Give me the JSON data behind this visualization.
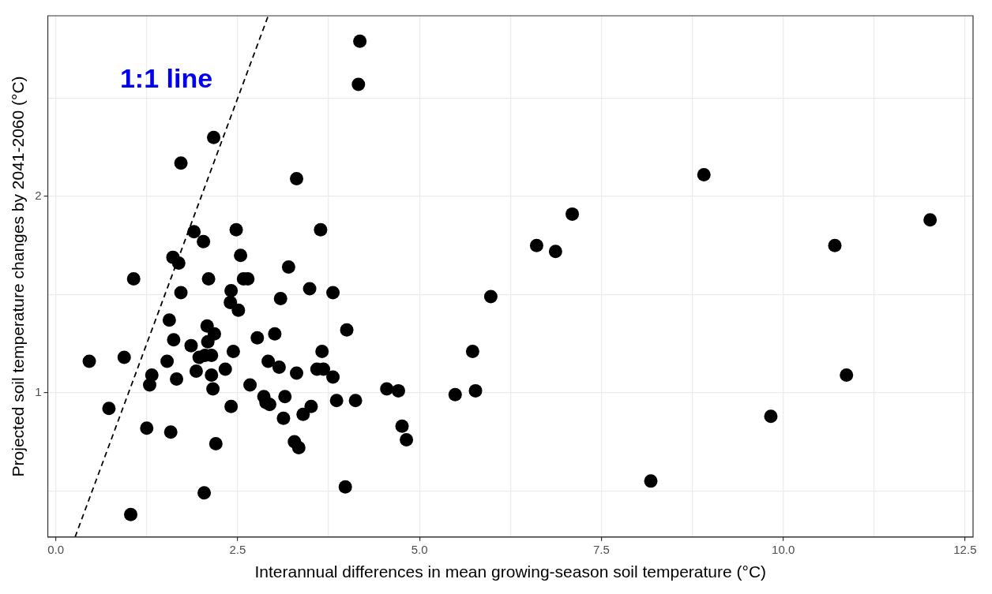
{
  "chart_data": {
    "type": "scatter",
    "xlabel": "Interannual differences in mean growing-season soil temperature (°C)",
    "ylabel": "Projected soil temperature changes by 2041-2060 (°C)",
    "xlim": [
      -0.11,
      12.61
    ],
    "ylim": [
      0.265,
      2.92
    ],
    "xticks": [
      {
        "value": 0,
        "label": "0.0"
      },
      {
        "value": 1.25,
        "label": null
      },
      {
        "value": 2.5,
        "label": "2.5"
      },
      {
        "value": 3.75,
        "label": null
      },
      {
        "value": 5,
        "label": "5.0"
      },
      {
        "value": 6.25,
        "label": null
      },
      {
        "value": 7.5,
        "label": "7.5"
      },
      {
        "value": 8.75,
        "label": null
      },
      {
        "value": 10,
        "label": "10.0"
      },
      {
        "value": 11.25,
        "label": null
      },
      {
        "value": 12.5,
        "label": "12.5"
      }
    ],
    "yticks": [
      {
        "value": 0.5,
        "label": null
      },
      1,
      {
        "value": 1.5,
        "label": null
      },
      2,
      {
        "value": 2.5,
        "label": null
      }
    ],
    "grid": true,
    "legend": false,
    "marker": "circle",
    "annotations": [
      "1:1 line"
    ],
    "series": [
      {
        "color": "#000000",
        "x": [
          4.18,
          4.16,
          2.17,
          1.72,
          3.31,
          8.91,
          7.1,
          12.02,
          6.61,
          6.87,
          10.71,
          5.98,
          1.9,
          2.03,
          2.48,
          3.64,
          1.61,
          1.69,
          2.54,
          1.07,
          2.1,
          2.58,
          2.64,
          3.2,
          3.49,
          1.72,
          2.41,
          2.4,
          2.51,
          3.09,
          3.81,
          1.56,
          2.08,
          2.18,
          3.01,
          4.0,
          1.62,
          2.09,
          2.77,
          1.86,
          3.66,
          2.44,
          0.94,
          0.46,
          1.53,
          1.97,
          2.05,
          2.14,
          2.92,
          1.93,
          1.32,
          2.33,
          2.14,
          3.07,
          3.59,
          3.68,
          3.31,
          3.81,
          1.29,
          1.66,
          2.16,
          2.67,
          4.55,
          4.71,
          5.77,
          5.49,
          5.73,
          10.87,
          0.73,
          2.86,
          3.15,
          2.89,
          2.94,
          2.41,
          3.51,
          3.86,
          4.12,
          3.13,
          3.4,
          4.76,
          4.82,
          3.28,
          3.34,
          1.25,
          1.58,
          2.2,
          9.83,
          8.18,
          3.98,
          2.04,
          1.03
        ],
        "values": [
          2.79,
          2.57,
          2.3,
          2.17,
          2.09,
          2.11,
          1.91,
          1.88,
          1.75,
          1.72,
          1.75,
          1.49,
          1.82,
          1.77,
          1.83,
          1.83,
          1.69,
          1.66,
          1.7,
          1.58,
          1.58,
          1.58,
          1.58,
          1.64,
          1.53,
          1.51,
          1.52,
          1.46,
          1.42,
          1.48,
          1.51,
          1.37,
          1.34,
          1.3,
          1.3,
          1.32,
          1.27,
          1.26,
          1.28,
          1.24,
          1.21,
          1.21,
          1.18,
          1.16,
          1.16,
          1.18,
          1.19,
          1.19,
          1.16,
          1.11,
          1.09,
          1.12,
          1.09,
          1.13,
          1.12,
          1.12,
          1.1,
          1.08,
          1.04,
          1.07,
          1.02,
          1.04,
          1.02,
          1.01,
          1.01,
          0.99,
          1.21,
          1.09,
          0.92,
          0.98,
          0.98,
          0.95,
          0.94,
          0.93,
          0.93,
          0.96,
          0.96,
          0.87,
          0.89,
          0.83,
          0.76,
          0.75,
          0.72,
          0.82,
          0.8,
          0.74,
          0.88,
          0.55,
          0.52,
          0.49,
          0.38
        ]
      },
      {
        "type": "line",
        "color": "#000000",
        "line_style": "dashed",
        "marker": "none",
        "x": [
          0.265,
          2.92
        ],
        "values": [
          0.265,
          2.92
        ]
      }
    ]
  }
}
